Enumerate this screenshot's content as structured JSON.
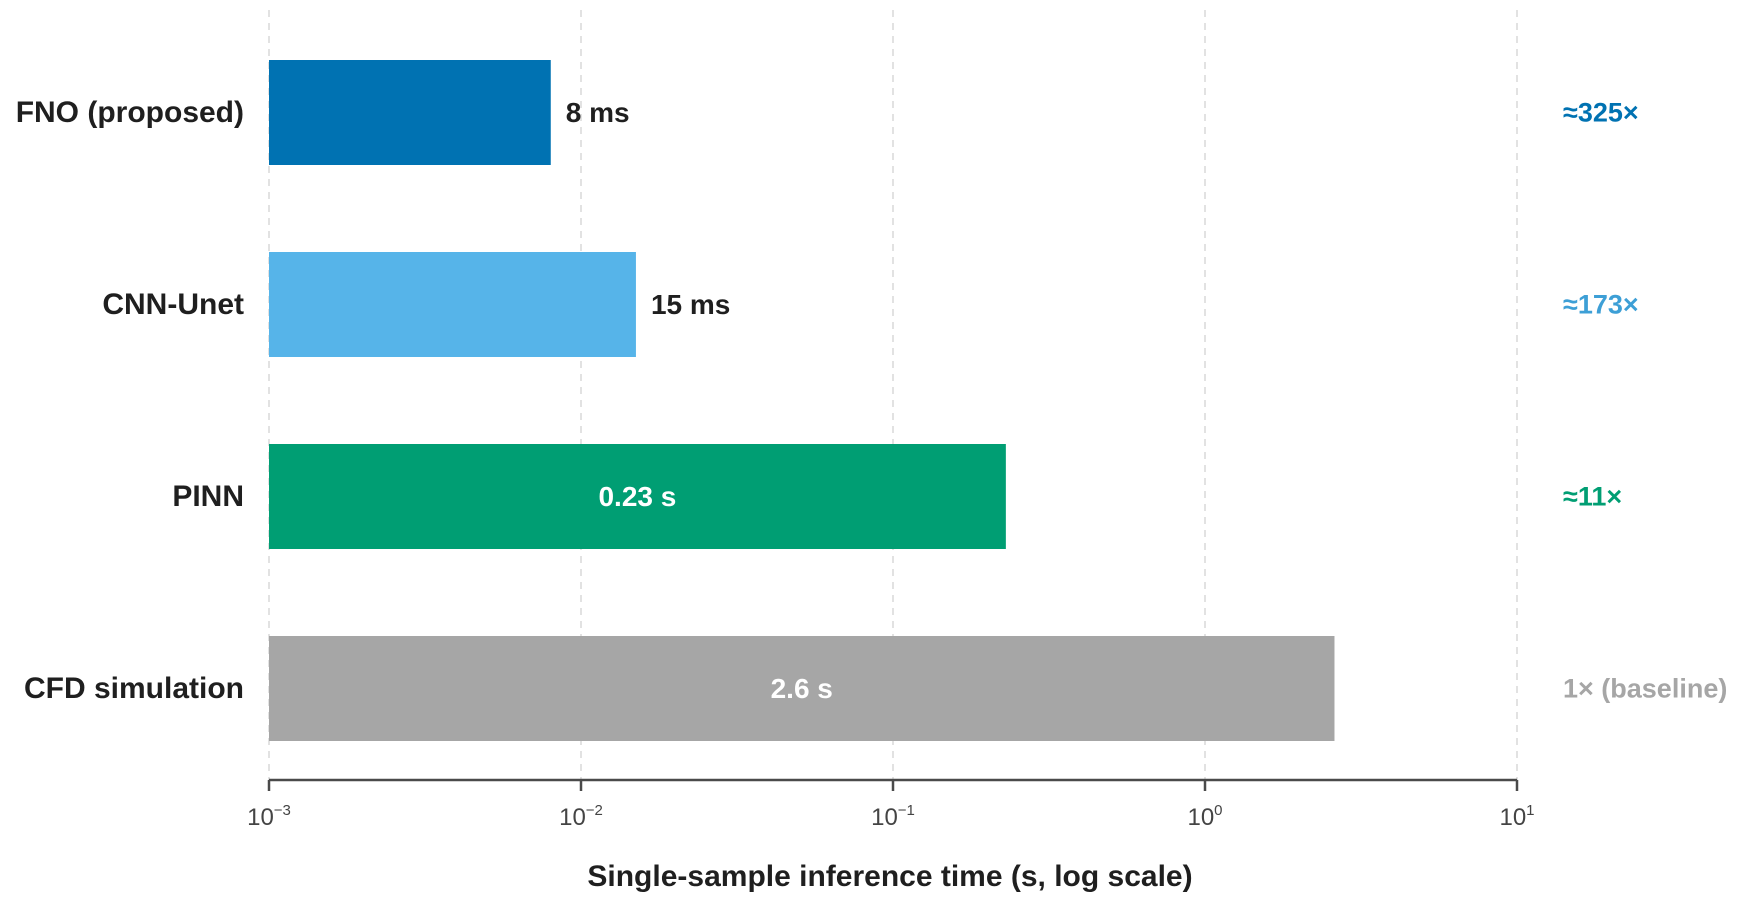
{
  "chart_data": {
    "type": "bar",
    "orientation": "horizontal",
    "title": "",
    "xlabel": "Single-sample inference time (s, log scale)",
    "ylabel": "",
    "xscale": "log",
    "xlim": [
      0.001,
      10
    ],
    "grid": true,
    "legend": "none",
    "categories": [
      "FNO (proposed)",
      "CNN-Unet",
      "PINN",
      "CFD simulation"
    ],
    "values": [
      0.008,
      0.015,
      0.23,
      2.6
    ],
    "value_labels": [
      "8 ms",
      "15 ms",
      "0.23 s",
      "2.6 s"
    ],
    "value_label_position": [
      "outside",
      "outside",
      "inside",
      "inside"
    ],
    "speedup_labels": [
      "≈325×",
      "≈173×",
      "≈11×",
      "1× (baseline)"
    ],
    "colors": [
      "#0072b2",
      "#56b4e9",
      "#009e73",
      "#a6a6a6"
    ],
    "speedup_colors": [
      "#0072b2",
      "#3d9fd6",
      "#009e73",
      "#a6a6a6"
    ],
    "ticks": [
      {
        "value": 0.001,
        "base": "10",
        "exponent": "−3"
      },
      {
        "value": 0.01,
        "base": "10",
        "exponent": "−2"
      },
      {
        "value": 0.1,
        "base": "10",
        "exponent": "−1"
      },
      {
        "value": 1,
        "base": "10",
        "exponent": "0"
      },
      {
        "value": 10,
        "base": "10",
        "exponent": "1"
      }
    ]
  }
}
